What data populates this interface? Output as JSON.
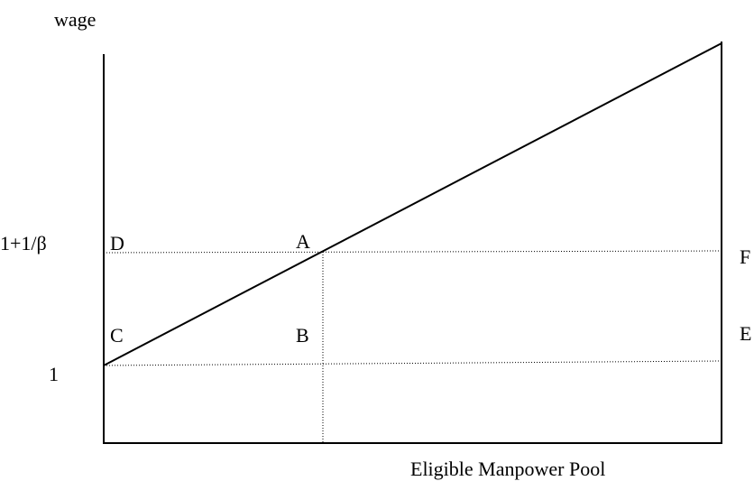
{
  "axis_labels": {
    "y": "wage",
    "x": "Eligible Manpower Pool"
  },
  "y_levels": [
    "1+1/β",
    "1"
  ],
  "points": [
    "D",
    "A",
    "F",
    "C",
    "B",
    "E"
  ]
}
